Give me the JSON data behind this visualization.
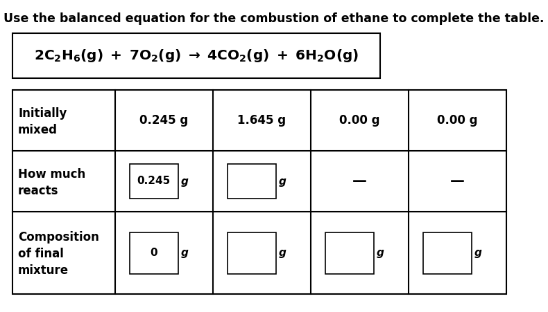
{
  "title": "Use the balanced equation for the combustion of ethane to complete the table.",
  "bg_color": "#ffffff",
  "text_color": "#000000",
  "title_fontsize": 12.5,
  "eq_fontsize": 14.5,
  "cell_fontsize": 12,
  "row_labels": [
    "Initially\nmixed",
    "How much\nreacts",
    "Composition\nof final\nmixture"
  ],
  "col_values_row0": [
    "0.245 g",
    "1.645 g",
    "0.00 g",
    "0.00 g"
  ],
  "row1_box_text": [
    "0.245",
    ""
  ],
  "row1_dash": [
    "—",
    "—"
  ],
  "row2_box_text": [
    "0",
    "",
    "",
    ""
  ]
}
